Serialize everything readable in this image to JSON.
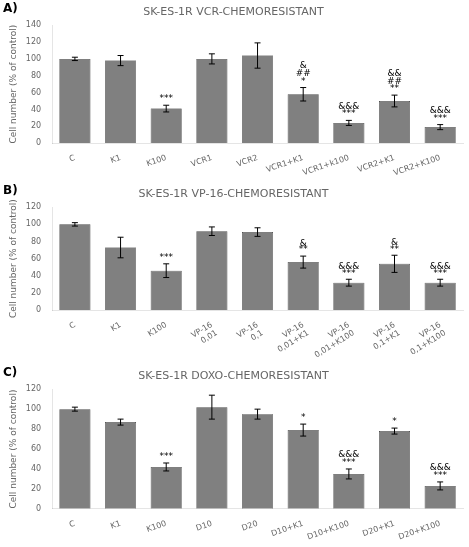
{
  "chart_data": [
    {
      "type": "bar",
      "panel_label": "A)",
      "title": "SK-ES-1R VCR-CHEMORESISTANT",
      "ylabel": "Cell number (% of control)",
      "categories": [
        "C",
        "K1",
        "K100",
        "VCR1",
        "VCR2",
        "VCR1+K1",
        "VCR1+k100",
        "VCR2+K1",
        "VCR2+K100"
      ],
      "values": [
        100,
        98,
        41,
        100,
        104,
        58,
        24,
        50,
        19
      ],
      "errors": [
        2,
        6,
        4,
        6,
        15,
        8,
        3,
        7,
        3
      ],
      "annotations": [
        [],
        [],
        [
          "***"
        ],
        [],
        [],
        [
          "*",
          "##",
          "&"
        ],
        [
          "***",
          "&&&"
        ],
        [
          "**",
          "##",
          "&&"
        ],
        [
          "***",
          "&&&"
        ]
      ],
      "color": "#808080",
      "ylim": [
        0,
        140
      ],
      "yticks": [
        0,
        20,
        40,
        60,
        80,
        100,
        120,
        140
      ],
      "grid": false
    },
    {
      "type": "bar",
      "panel_label": "B)",
      "title": "SK-ES-1R VP-16-CHEMORESISTANT",
      "ylabel": "Cell number (% of control)",
      "categories": [
        "C",
        "K1",
        "K100",
        "VP-16\n0,01",
        "VP-16\n0,1",
        "VP-16\n0,01+K1",
        "VP-16\n0,01+K100",
        "VP-16\n0,1+K1",
        "VP-16\n0,1+K100"
      ],
      "values": [
        100,
        73,
        46,
        92,
        91,
        56,
        32,
        54,
        32
      ],
      "errors": [
        2,
        12,
        8,
        5,
        5,
        7,
        4,
        10,
        4
      ],
      "annotations": [
        [],
        [],
        [
          "***"
        ],
        [],
        [],
        [
          "**",
          "&"
        ],
        [
          "***",
          "&&&"
        ],
        [
          "**",
          "&"
        ],
        [
          "***",
          "&&&"
        ]
      ],
      "color": "#808080",
      "ylim": [
        0,
        120
      ],
      "yticks": [
        0,
        20,
        40,
        60,
        80,
        100,
        120
      ],
      "grid": false
    },
    {
      "type": "bar",
      "panel_label": "C)",
      "title": "SK-ES-1R DOXO-CHEMORESISTANT",
      "ylabel": "Cell number (% of control)",
      "categories": [
        "C",
        "K1",
        "K100",
        "D10",
        "D20",
        "D10+K1",
        "D10+K100",
        "D20+K1",
        "D20+K100"
      ],
      "values": [
        100,
        87,
        42,
        102,
        95,
        79,
        35,
        78,
        23
      ],
      "errors": [
        2,
        3,
        4,
        12,
        5,
        6,
        5,
        3,
        4
      ],
      "annotations": [
        [],
        [],
        [
          "***"
        ],
        [],
        [],
        [
          "*"
        ],
        [
          "***",
          "&&&"
        ],
        [
          "*"
        ],
        [
          "***",
          "&&&"
        ]
      ],
      "color": "#808080",
      "ylim": [
        0,
        120
      ],
      "yticks": [
        0,
        20,
        40,
        60,
        80,
        100,
        120
      ],
      "grid": false
    }
  ]
}
